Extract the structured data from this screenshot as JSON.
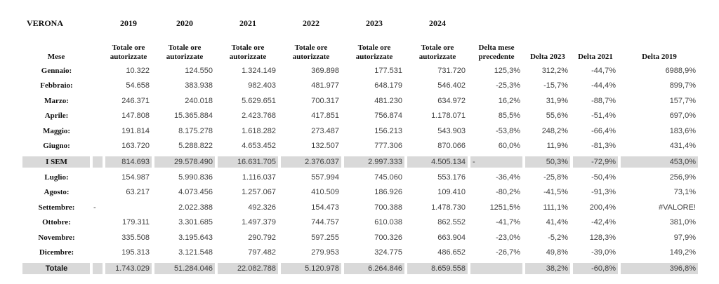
{
  "colors": {
    "row_highlight": "#d9d9d9",
    "number_text": "#3f3f3f",
    "heading_text": "#111111",
    "background": "#ffffff"
  },
  "table": {
    "title": "VERONA",
    "mese_label": "Mese",
    "years": [
      "2019",
      "2020",
      "2021",
      "2022",
      "2023",
      "2024"
    ],
    "year_subheader": "Totale ore autorizzate",
    "delta_mese_label": "Delta mese precedente",
    "delta_2023_label": "Delta 2023",
    "delta_2021_label": "Delta 2021",
    "delta_2019_label": "Delta 2019",
    "value_keys": [
      "2019",
      "2020",
      "2021",
      "2022",
      "2023",
      "2024",
      "delta-mese-precedente",
      "delta-2023",
      "delta-2021",
      "delta-2019"
    ],
    "rows": [
      {
        "kind": "month",
        "label": "Gennaio:",
        "spacer": "",
        "values": [
          "10.322",
          "124.550",
          "1.324.149",
          "369.898",
          "177.531",
          "731.720",
          "125,3%",
          "312,2%",
          "-44,7%",
          "6988,9%"
        ]
      },
      {
        "kind": "month",
        "label": "Febbraio:",
        "spacer": "",
        "values": [
          "54.658",
          "383.938",
          "982.403",
          "481.977",
          "648.179",
          "546.402",
          "-25,3%",
          "-15,7%",
          "-44,4%",
          "899,7%"
        ]
      },
      {
        "kind": "month",
        "label": "Marzo:",
        "spacer": "",
        "values": [
          "246.371",
          "240.018",
          "5.629.651",
          "700.317",
          "481.230",
          "634.972",
          "16,2%",
          "31,9%",
          "-88,7%",
          "157,7%"
        ]
      },
      {
        "kind": "month",
        "label": "Aprile:",
        "spacer": "",
        "values": [
          "147.808",
          "15.365.884",
          "2.423.768",
          "417.851",
          "756.874",
          "1.178.071",
          "85,5%",
          "55,6%",
          "-51,4%",
          "697,0%"
        ]
      },
      {
        "kind": "month",
        "label": "Maggio:",
        "spacer": "",
        "values": [
          "191.814",
          "8.175.278",
          "1.618.282",
          "273.487",
          "156.213",
          "543.903",
          "-53,8%",
          "248,2%",
          "-66,4%",
          "183,6%"
        ]
      },
      {
        "kind": "month",
        "label": "Giugno:",
        "spacer": "",
        "values": [
          "163.720",
          "5.288.822",
          "4.653.452",
          "132.507",
          "777.306",
          "870.066",
          "60,0%",
          "11,9%",
          "-81,3%",
          "431,4%"
        ]
      },
      {
        "kind": "sem",
        "label": "I SEM",
        "spacer": "",
        "values": [
          "814.693",
          "29.578.490",
          "16.631.705",
          "2.376.037",
          "2.997.333",
          "4.505.134",
          "-",
          "50,3%",
          "-72,9%",
          "453,0%"
        ]
      },
      {
        "kind": "month",
        "label": "Luglio:",
        "spacer": "",
        "values": [
          "154.987",
          "5.990.836",
          "1.116.037",
          "557.994",
          "745.060",
          "553.176",
          "-36,4%",
          "-25,8%",
          "-50,4%",
          "256,9%"
        ]
      },
      {
        "kind": "month",
        "label": "Agosto:",
        "spacer": "",
        "values": [
          "63.217",
          "4.073.456",
          "1.257.067",
          "410.509",
          "186.926",
          "109.410",
          "-80,2%",
          "-41,5%",
          "-91,3%",
          "73,1%"
        ]
      },
      {
        "kind": "month",
        "label": "Settembre:",
        "spacer": "-",
        "values": [
          "",
          "2.022.388",
          "492.326",
          "154.473",
          "700.388",
          "1.478.730",
          "1251,5%",
          "111,1%",
          "200,4%",
          "#VALORE!"
        ]
      },
      {
        "kind": "month",
        "label": "Ottobre:",
        "spacer": "",
        "values": [
          "179.311",
          "3.301.685",
          "1.497.379",
          "744.757",
          "610.038",
          "862.552",
          "-41,7%",
          "41,4%",
          "-42,4%",
          "381,0%"
        ]
      },
      {
        "kind": "month",
        "label": "Novembre:",
        "spacer": "",
        "values": [
          "335.508",
          "3.195.643",
          "290.792",
          "597.255",
          "700.326",
          "663.904",
          "-23,0%",
          "-5,2%",
          "128,3%",
          "97,9%"
        ]
      },
      {
        "kind": "month",
        "label": "Dicembre:",
        "spacer": "",
        "values": [
          "195.313",
          "3.121.548",
          "797.482",
          "279.953",
          "324.775",
          "486.652",
          "-26,7%",
          "49,8%",
          "-39,0%",
          "149,2%"
        ]
      },
      {
        "kind": "total",
        "label": "Totale",
        "spacer": "",
        "values": [
          "1.743.029",
          "51.284.046",
          "22.082.788",
          "5.120.978",
          "6.264.846",
          "8.659.558",
          "",
          "38,2%",
          "-60,8%",
          "396,8%"
        ]
      }
    ]
  }
}
